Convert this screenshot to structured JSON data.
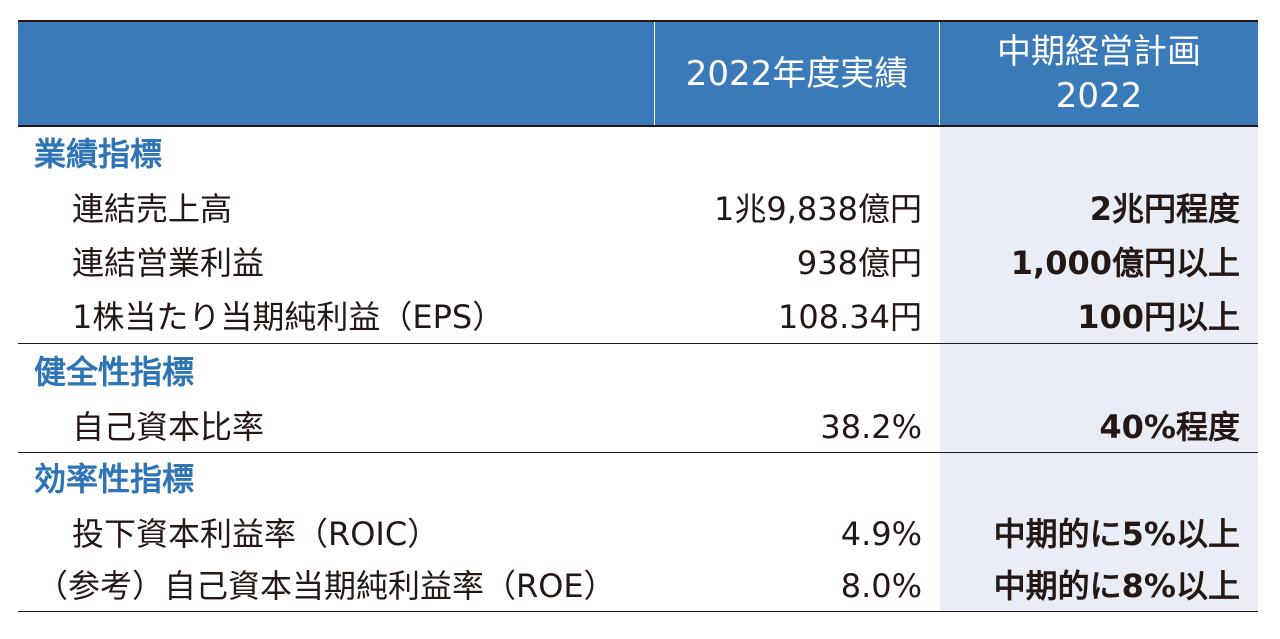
{
  "header": {
    "actual": "2022年度実績",
    "plan_line1": "中期経営計画",
    "plan_line2": "2022"
  },
  "sections": [
    {
      "title": "業績指標",
      "rows": [
        {
          "label": "連結売上高",
          "actual": "1兆9,838億円",
          "plan": "2兆円程度"
        },
        {
          "label": "連結営業利益",
          "actual": "938億円",
          "plan": "1,000億円以上"
        },
        {
          "label": "1株当たり当期純利益（EPS）",
          "actual": "108.34円",
          "plan": "100円以上"
        }
      ]
    },
    {
      "title": "健全性指標",
      "rows": [
        {
          "label": "自己資本比率",
          "actual": "38.2%",
          "plan": "40%程度"
        }
      ]
    },
    {
      "title": "効率性指標",
      "rows": [
        {
          "label": "投下資本利益率（ROIC）",
          "actual": "4.9%",
          "plan": "中期的に5%以上"
        },
        {
          "label": "（参考）自己資本当期純利益率（ROE）",
          "actual": "8.0%",
          "plan": "中期的に8%以上"
        }
      ]
    }
  ]
}
